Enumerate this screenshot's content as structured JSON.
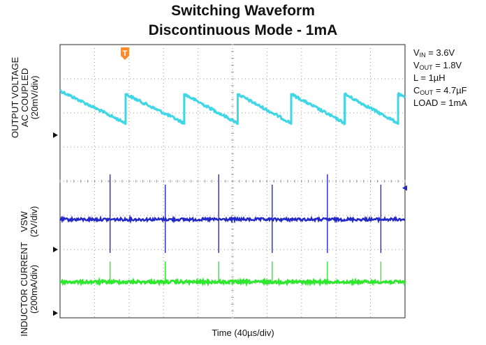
{
  "chart_data": {
    "type": "line",
    "title": "Switching Waveform",
    "subtitle": "Discontinuous Mode - 1mA",
    "xlabel": "Time (40µs/div)",
    "x_divisions": 10,
    "y_divisions": 8,
    "grid": true,
    "channels": [
      {
        "label_lines": [
          "OUTPUT VOLTAGE",
          "AC COUPLED",
          "(20mV/div)"
        ],
        "color": "#3fd6e6",
        "waveform": "sawtooth",
        "amplitude_div": 1.0,
        "switching_times_div": [
          1.9,
          3.6,
          5.15,
          6.7,
          8.25,
          9.8
        ]
      },
      {
        "label_lines": [
          "VSW",
          "(2V/div)"
        ],
        "color": "#2328c9",
        "waveform": "spikes",
        "switching_times_div": [
          1.45,
          3.05,
          4.6,
          6.15,
          7.75,
          9.3
        ]
      },
      {
        "label_lines": [
          "INDUCTOR CURRENT",
          "(200mA/div)"
        ],
        "color": "#2ee82e",
        "waveform": "spikes",
        "switching_times_div": [
          1.45,
          3.05,
          4.6,
          6.15,
          7.75,
          9.3
        ]
      }
    ],
    "trigger_marker": "T",
    "conditions": [
      {
        "main": "V",
        "sub": "IN",
        "value": " = 3.6V"
      },
      {
        "main": "V",
        "sub": "OUT",
        "value": " = 1.8V"
      },
      {
        "main": "L = 1µH",
        "sub": "",
        "value": ""
      },
      {
        "main": "C",
        "sub": "OUT",
        "value": " = 4.7µF"
      },
      {
        "main": "LOAD = 1mA",
        "sub": "",
        "value": ""
      }
    ]
  },
  "colors": {
    "grid_border": "#4a4a4a",
    "grid_dots": "#9a9a9a",
    "trigger": "#ff8a2a",
    "marker": "#111111"
  }
}
